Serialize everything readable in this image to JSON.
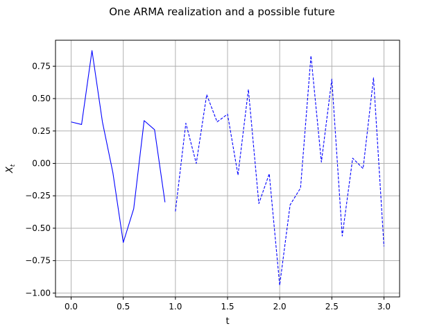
{
  "chart_data": {
    "type": "line",
    "title": "One ARMA realization and a possible future",
    "xlabel": "t",
    "ylabel_main": "X",
    "ylabel_sub": "t",
    "xlim": [
      -0.15,
      3.15
    ],
    "ylim": [
      -1.03,
      0.95
    ],
    "grid": true,
    "colors": {
      "series": "#0000ff",
      "axis": "#000000",
      "grid": "#b0b0b0"
    },
    "x_ticks": [
      {
        "value": 0.0,
        "label": "0.0"
      },
      {
        "value": 0.5,
        "label": "0.5"
      },
      {
        "value": 1.0,
        "label": "1.0"
      },
      {
        "value": 1.5,
        "label": "1.5"
      },
      {
        "value": 2.0,
        "label": "2.0"
      },
      {
        "value": 2.5,
        "label": "2.5"
      },
      {
        "value": 3.0,
        "label": "3.0"
      }
    ],
    "y_ticks": [
      {
        "value": 0.75,
        "label": "0.75"
      },
      {
        "value": 0.5,
        "label": "0.50"
      },
      {
        "value": 0.25,
        "label": "0.25"
      },
      {
        "value": 0.0,
        "label": "0.00"
      },
      {
        "value": -0.25,
        "label": "−0.25"
      },
      {
        "value": -0.5,
        "label": "−0.50"
      },
      {
        "value": -0.75,
        "label": "−0.75"
      },
      {
        "value": -1.0,
        "label": "−1.00"
      }
    ],
    "series": [
      {
        "style": "solid",
        "x": [
          0.0,
          0.1,
          0.2,
          0.3,
          0.4,
          0.5,
          0.6,
          0.7,
          0.8,
          0.9
        ],
        "values": [
          0.32,
          0.3,
          0.87,
          0.32,
          -0.07,
          -0.61,
          -0.35,
          0.33,
          0.26,
          -0.3
        ]
      },
      {
        "style": "dashed",
        "x": [
          1.0,
          1.1,
          1.2,
          1.3,
          1.4,
          1.5,
          1.6,
          1.7,
          1.8,
          1.9,
          2.0,
          2.1,
          2.2,
          2.3,
          2.4,
          2.5,
          2.6,
          2.7,
          2.8,
          2.9,
          3.0
        ],
        "values": [
          -0.37,
          0.31,
          0.0,
          0.53,
          0.32,
          0.38,
          -0.09,
          0.57,
          -0.31,
          -0.08,
          -0.94,
          -0.32,
          -0.19,
          0.83,
          0.01,
          0.65,
          -0.56,
          0.04,
          -0.04,
          0.66,
          -0.64
        ]
      }
    ]
  }
}
